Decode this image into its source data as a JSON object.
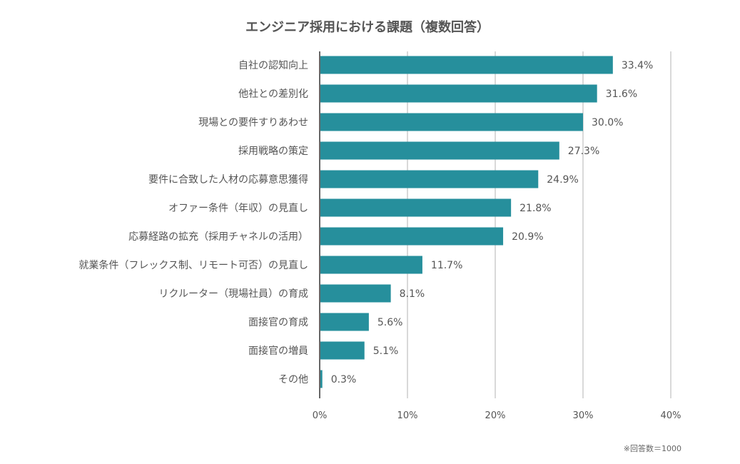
{
  "chart_data": {
    "type": "bar",
    "orientation": "horizontal",
    "title": "エンジニア採用における課題（複数回答）",
    "categories": [
      "自社の認知向上",
      "他社との差別化",
      "現場との要件すりあわせ",
      "採用戦略の策定",
      "要件に合致した人材の応募意思獲得",
      "オファー条件（年収）の見直し",
      "応募経路の拡充（採用チャネルの活用）",
      "就業条件（フレックス制、リモート可否）の見直し",
      "リクルーター（現場社員）の育成",
      "面接官の育成",
      "面接官の増員",
      "その他"
    ],
    "values": [
      33.4,
      31.6,
      30.0,
      27.3,
      24.9,
      21.8,
      20.9,
      11.7,
      8.1,
      5.6,
      5.1,
      0.3
    ],
    "value_labels": [
      "33.4%",
      "31.6%",
      "30.0%",
      "27.3%",
      "24.9%",
      "21.8%",
      "20.9%",
      "11.7%",
      "8.1%",
      "5.6%",
      "5.1%",
      "0.3%"
    ],
    "xlim": [
      0,
      40
    ],
    "xticks": [
      0,
      10,
      20,
      30,
      40
    ],
    "xtick_labels": [
      "0%",
      "10%",
      "20%",
      "30%",
      "40%"
    ],
    "xlabel": "",
    "ylabel": "",
    "grid": true,
    "bar_color": "#268f9c",
    "note": "※回答数＝1000"
  }
}
